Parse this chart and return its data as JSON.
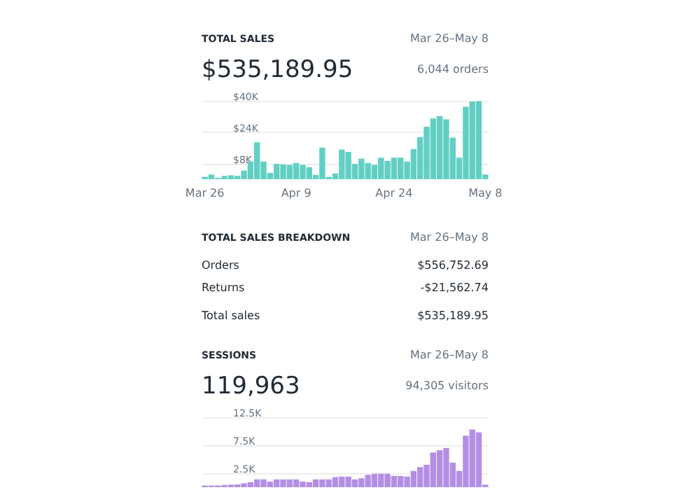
{
  "chart_data": [
    {
      "type": "bar",
      "title": "TOTAL SALES",
      "subtitle": "$535,189.95",
      "annotations": [
        "Mar 26–May 8",
        "6,044 orders"
      ],
      "color": "#62cfc4",
      "categories": [
        "Mar 26",
        null,
        null,
        null,
        null,
        null,
        null,
        null,
        null,
        null,
        null,
        null,
        null,
        null,
        "Apr 9",
        null,
        null,
        null,
        null,
        null,
        null,
        null,
        null,
        null,
        null,
        null,
        null,
        null,
        null,
        "Apr 24",
        null,
        null,
        null,
        null,
        null,
        null,
        null,
        null,
        null,
        null,
        null,
        null,
        null,
        "May 8"
      ],
      "values": [
        1200,
        2400,
        700,
        1700,
        2000,
        1700,
        4400,
        9000,
        18800,
        9000,
        3200,
        7800,
        7600,
        7300,
        8300,
        7300,
        6100,
        2200,
        16100,
        1200,
        2900,
        15100,
        13900,
        7800,
        10500,
        8300,
        7300,
        11000,
        9300,
        11000,
        11000,
        9000,
        15400,
        21500,
        26800,
        31000,
        32200,
        30500,
        21200,
        11000,
        37000,
        39600,
        39800,
        2400
      ],
      "ylim": [
        0,
        40000
      ],
      "yticks": [
        {
          "value": 8000,
          "label": "$8K"
        },
        {
          "value": 24000,
          "label": "$24K"
        },
        {
          "value": 40000,
          "label": "$40K"
        }
      ],
      "grid": "y"
    },
    {
      "type": "other",
      "title": "TOTAL SALES BREAKDOWN",
      "annotations": [
        "Mar 26–May 8",
        "Orders",
        "$556,752.69",
        "Returns",
        "-$21,562.74",
        "Total sales",
        "$535,189.95"
      ]
    },
    {
      "type": "bar",
      "title": "SESSIONS",
      "subtitle": "119,963",
      "annotations": [
        "Mar 26–May 8",
        "94,305 visitors"
      ],
      "color": "#b48ee6",
      "categories": [
        null,
        null,
        null,
        null,
        null,
        null,
        null,
        null,
        null,
        null,
        null,
        null,
        null,
        null,
        null,
        null,
        null,
        null,
        null,
        null,
        null,
        null,
        null,
        null,
        null,
        null,
        null,
        null,
        null,
        null,
        null,
        null,
        null,
        null,
        null,
        null,
        null,
        null,
        null,
        null,
        null,
        null,
        null,
        null
      ],
      "values": [
        300,
        300,
        300,
        400,
        450,
        500,
        700,
        900,
        1400,
        1400,
        1000,
        1400,
        1400,
        1400,
        1400,
        1000,
        900,
        1400,
        1400,
        1400,
        1800,
        1900,
        1900,
        1400,
        1600,
        2200,
        2400,
        2400,
        2400,
        2000,
        2000,
        1900,
        2900,
        3600,
        4000,
        6200,
        6600,
        7000,
        4400,
        2900,
        9200,
        10300,
        9800,
        450
      ],
      "ylim": [
        0,
        12500
      ],
      "yticks": [
        {
          "value": 2500,
          "label": "2.5K"
        },
        {
          "value": 7500,
          "label": "7.5K"
        },
        {
          "value": 12500,
          "label": "12.5K"
        }
      ],
      "grid": "y",
      "tick_labels": "y"
    }
  ]
}
